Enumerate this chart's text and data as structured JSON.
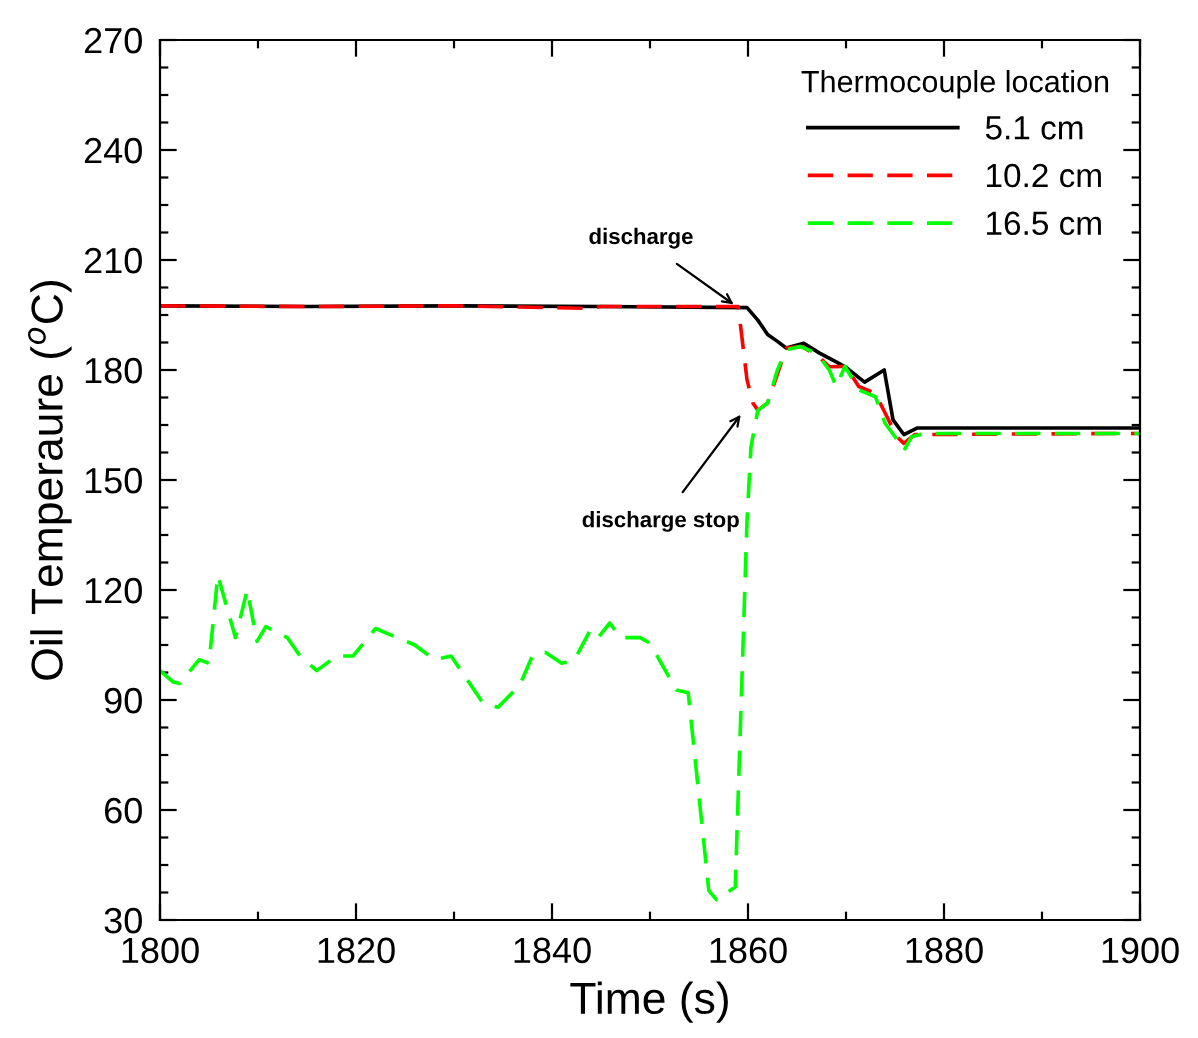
{
  "chart_data": {
    "type": "line",
    "xlabel": "Time (s)",
    "ylabel": "Oil Temperaure ($^{o}$C)",
    "legend_title": "Thermocouple location",
    "xlim": [
      1800,
      1900
    ],
    "ylim": [
      30,
      270
    ],
    "xticks": [
      1800,
      {
        "value": 1810,
        "label": null
      },
      1820,
      {
        "value": 1830,
        "label": null
      },
      1840,
      {
        "value": 1850,
        "label": null
      },
      1860,
      {
        "value": 1870,
        "label": null
      },
      1880,
      {
        "value": 1890,
        "label": null
      },
      1900
    ],
    "yticks": [
      30,
      {
        "value": 37.5,
        "label": null
      },
      {
        "value": 45,
        "label": null
      },
      {
        "value": 52.5,
        "label": null
      },
      60,
      {
        "value": 67.5,
        "label": null
      },
      {
        "value": 75,
        "label": null
      },
      {
        "value": 82.5,
        "label": null
      },
      90,
      {
        "value": 97.5,
        "label": null
      },
      {
        "value": 105,
        "label": null
      },
      {
        "value": 112.5,
        "label": null
      },
      120,
      {
        "value": 127.5,
        "label": null
      },
      {
        "value": 135,
        "label": null
      },
      {
        "value": 142.5,
        "label": null
      },
      150,
      {
        "value": 157.5,
        "label": null
      },
      {
        "value": 165,
        "label": null
      },
      {
        "value": 172.5,
        "label": null
      },
      180,
      {
        "value": 187.5,
        "label": null
      },
      {
        "value": 195,
        "label": null
      },
      {
        "value": 202.5,
        "label": null
      },
      210,
      {
        "value": 217.5,
        "label": null
      },
      {
        "value": 225,
        "label": null
      },
      {
        "value": 232.5,
        "label": null
      },
      240,
      {
        "value": 247.5,
        "label": null
      },
      {
        "value": 255,
        "label": null
      },
      {
        "value": 262.5,
        "label": null
      },
      270
    ],
    "grid": false,
    "legend": "top right",
    "annotations": [
      {
        "text": "discharge",
        "x": 1859,
        "y": 197
      },
      {
        "text": "discharge stop",
        "x": 1859.6,
        "y": 169
      }
    ],
    "series": [
      {
        "name": "5.1 cm",
        "color": "#000000",
        "line_style": "solid",
        "x": [
          1800,
          1815,
          1830,
          1845,
          1859.9,
          1861,
          1862,
          1863,
          1863.9,
          1865.7,
          1867.3,
          1869,
          1870,
          1871.9,
          1873.9,
          1874.8,
          1875.9,
          1877.3,
          1900
        ],
        "values": [
          197.5,
          197.3,
          197.5,
          197.3,
          197,
          193.6,
          189.7,
          187.8,
          186,
          187.3,
          184.6,
          182.2,
          180.7,
          176.7,
          180,
          166.4,
          162.4,
          164.2,
          164.2
        ]
      },
      {
        "name": "10.2 cm",
        "color": "#ff0000",
        "line_style": "dashed",
        "x": [
          1800,
          1815,
          1830,
          1844,
          1845,
          1859,
          1859.9,
          1860.5,
          1861,
          1862,
          1863.9,
          1865.5,
          1867.2,
          1868.3,
          1870,
          1871.3,
          1873,
          1874,
          1875.2,
          1875.9,
          1877,
          1900
        ],
        "values": [
          197.5,
          197.3,
          197.5,
          196.8,
          197.3,
          197.3,
          177.3,
          171,
          169,
          171,
          186,
          186.4,
          183.7,
          180.9,
          181,
          175.5,
          173.6,
          168.2,
          161.8,
          160,
          162.4,
          162.7
        ]
      },
      {
        "name": "16.5 cm",
        "color": "#00ff00",
        "line_style": "dashed",
        "x": [
          1800,
          1801.3,
          1802,
          1804,
          1805,
          1805.9,
          1807.7,
          1808.9,
          1809.9,
          1810.8,
          1813,
          1814.3,
          1816,
          1818,
          1819.7,
          1822,
          1826,
          1828,
          1829.7,
          1833,
          1834.5,
          1836.7,
          1838,
          1839.3,
          1841,
          1842.3,
          1843.9,
          1844.7,
          1845.9,
          1847,
          1849,
          1850,
          1852.7,
          1853.9,
          1856,
          1856.8,
          1858.7,
          1859.9,
          1860.3,
          1861,
          1862,
          1863,
          1863.9,
          1865.3,
          1867,
          1868.3,
          1869,
          1869.9,
          1871.3,
          1873,
          1874,
          1875,
          1875.9,
          1876.7,
          1878,
          1900
        ],
        "values": [
          98,
          95,
          94.5,
          101,
          100,
          124,
          107,
          120,
          106,
          110,
          107,
          102,
          98,
          102,
          102,
          109.5,
          105,
          101,
          102,
          89,
          88,
          94,
          102,
          103,
          100,
          101,
          109,
          107,
          111,
          107,
          107,
          105.5,
          92.7,
          92,
          38,
          35.5,
          39,
          139,
          159,
          169,
          171,
          180,
          185.5,
          186.4,
          184.6,
          180,
          175.5,
          181,
          174.6,
          172.7,
          165.4,
          161.8,
          158,
          161.8,
          162.7,
          162.7
        ]
      }
    ]
  }
}
